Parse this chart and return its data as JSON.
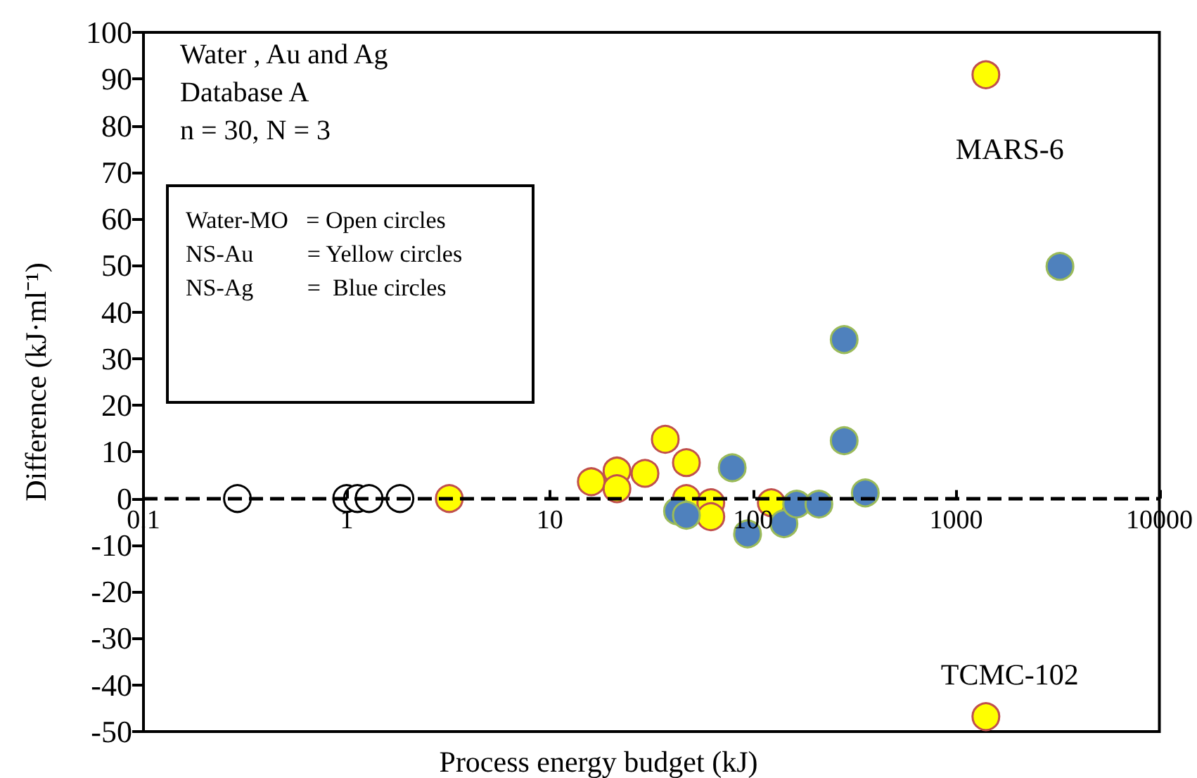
{
  "chart_data": {
    "type": "scatter",
    "xlabel": "Process energy budget (kJ)",
    "ylabel": "Difference (kJ·ml⁻¹)",
    "log": "x",
    "xlim": [
      0.1,
      10000
    ],
    "xticks": [
      0.1,
      1,
      10,
      100,
      1000,
      10000
    ],
    "ylim": [
      -50,
      100
    ],
    "yticks": [
      -50,
      -40,
      -30,
      -20,
      -10,
      0,
      10,
      20,
      30,
      40,
      50,
      60,
      70,
      80,
      90,
      100
    ],
    "grid": false,
    "marker": "circle",
    "series": [
      {
        "color": "#ffffff",
        "x": [
          0.29,
          1.0,
          1.13,
          1.29,
          1.83
        ],
        "values": [
          0,
          0,
          0,
          0,
          0
        ]
      },
      {
        "color": "#ffff00",
        "x": [
          3.2,
          16,
          21.4,
          21.4,
          29.4,
          37,
          47,
          47,
          62,
          62,
          123,
          1400,
          1400
        ],
        "values": [
          0,
          3.6,
          5.9,
          2.1,
          5.4,
          12.7,
          7.7,
          0,
          -0.9,
          -3.9,
          -0.9,
          90.9,
          -46.8
        ]
      },
      {
        "color": "#4f81bd",
        "x": [
          42.5,
          47,
          79,
          94,
          142,
          164,
          211,
          281,
          281,
          357,
          3240
        ],
        "values": [
          -2.7,
          -3.6,
          6.6,
          -7.6,
          -5.4,
          -1.2,
          -1.2,
          12.4,
          34.1,
          1.2,
          49.8
        ]
      }
    ],
    "ref_lines": [
      {
        "axis": "y",
        "value": 0,
        "line_style": "dashed",
        "color": "#000000"
      }
    ],
    "annotations": [
      "Water , Au and Ag",
      "Database A",
      "n = 30, N = 3",
      "Water-MO   = Open circles",
      "NS-Au         = Yellow circles",
      "NS-Ag         =  Blue circles",
      {
        "text": "MARS-6",
        "x": 1400,
        "y": 90.9
      },
      {
        "text": "TCMC-102",
        "x": 1400,
        "y": -46.8
      }
    ]
  }
}
